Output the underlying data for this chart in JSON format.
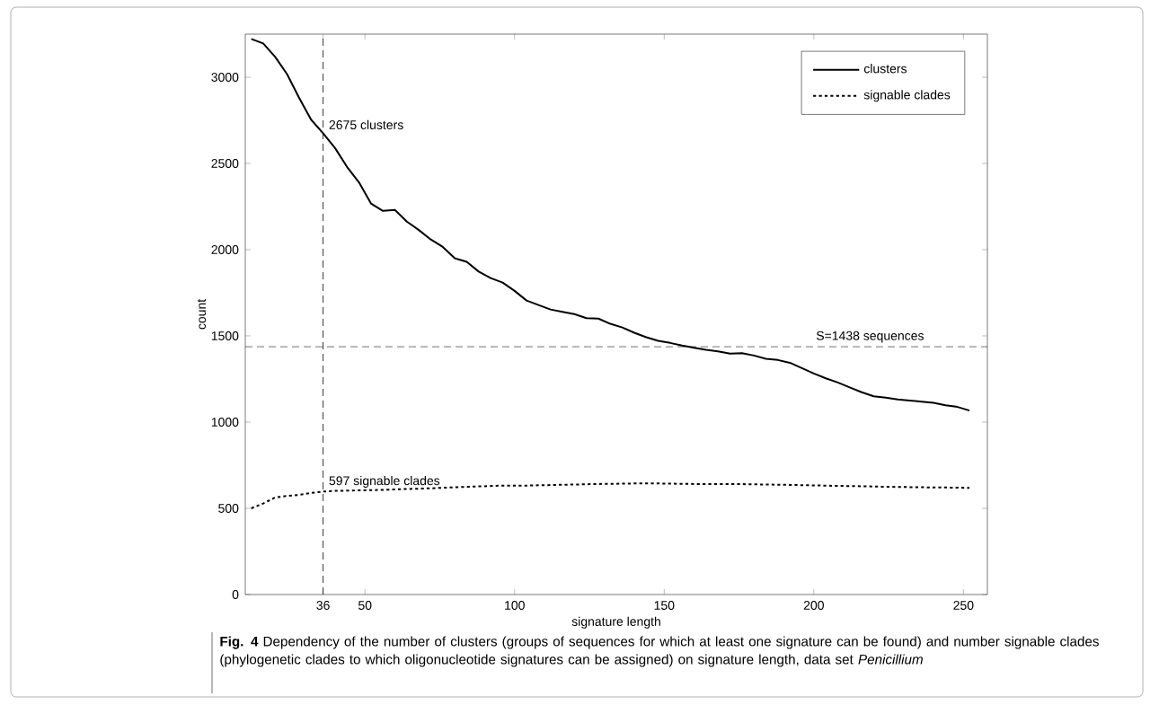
{
  "chart_data": {
    "type": "line",
    "xlabel": "signature length",
    "ylabel": "count",
    "xlim": [
      10,
      258
    ],
    "ylim": [
      0,
      3250
    ],
    "xticks": [
      36,
      50,
      100,
      150,
      200,
      250
    ],
    "yticks": [
      0,
      500,
      1000,
      1500,
      2000,
      2500,
      3000
    ],
    "legend": "top right",
    "grid": false,
    "marker": "none",
    "series": [
      {
        "name": "clusters",
        "color": "#000000",
        "line_style": "solid",
        "x": [
          12,
          16,
          20,
          24,
          28,
          32,
          36,
          40,
          44,
          48,
          52,
          56,
          60,
          64,
          68,
          72,
          76,
          80,
          84,
          88,
          92,
          96,
          100,
          104,
          108,
          112,
          116,
          120,
          124,
          128,
          132,
          136,
          140,
          144,
          148,
          152,
          156,
          160,
          164,
          168,
          172,
          176,
          180,
          184,
          188,
          192,
          196,
          200,
          204,
          208,
          212,
          216,
          220,
          224,
          228,
          232,
          236,
          240,
          244,
          248,
          252
        ],
        "values": [
          3222,
          3196,
          3118,
          3017,
          2880,
          2754,
          2675,
          2589,
          2480,
          2390,
          2268,
          2225,
          2230,
          2163,
          2114,
          2059,
          2016,
          1950,
          1930,
          1873,
          1835,
          1809,
          1761,
          1705,
          1679,
          1653,
          1639,
          1626,
          1603,
          1600,
          1570,
          1549,
          1518,
          1492,
          1471,
          1459,
          1444,
          1431,
          1419,
          1410,
          1397,
          1400,
          1386,
          1367,
          1360,
          1344,
          1313,
          1282,
          1254,
          1230,
          1201,
          1173,
          1150,
          1142,
          1132,
          1125,
          1119,
          1112,
          1098,
          1088,
          1067
        ]
      },
      {
        "name": "signable clades",
        "color": "#000000",
        "line_style": "dotted",
        "x": [
          12,
          16,
          20,
          24,
          28,
          32,
          36,
          40,
          48,
          56,
          64,
          72,
          80,
          88,
          96,
          104,
          112,
          120,
          128,
          136,
          144,
          152,
          160,
          168,
          176,
          184,
          192,
          200,
          208,
          216,
          224,
          232,
          240,
          248,
          252
        ],
        "values": [
          500,
          528,
          563,
          572,
          578,
          589,
          597,
          601,
          604,
          607,
          612,
          616,
          622,
          627,
          632,
          632,
          635,
          638,
          641,
          643,
          645,
          643,
          641,
          640,
          640,
          638,
          636,
          633,
          630,
          628,
          625,
          623,
          621,
          620,
          618
        ]
      }
    ],
    "ref_lines": [
      {
        "axis": "x",
        "value": 36,
        "line_style": "dashed",
        "color": "#000000"
      },
      {
        "axis": "y",
        "value": 1438,
        "label": "S=1438 sequences",
        "line_style": "dashed",
        "color": "#000000"
      }
    ],
    "annotations": [
      {
        "text": "2675 clusters",
        "x": 36,
        "y": 2675
      },
      {
        "text": "597 signable clades",
        "x": 36,
        "y": 597
      },
      "**Fig. 4** Dependency of the number of clusters (groups of sequences for which at least one signature can be found) and number signable clades (phylogenetic clades to which oligonucleotide signatures can be assigned) on signature length, data set *Penicillium*"
    ]
  }
}
